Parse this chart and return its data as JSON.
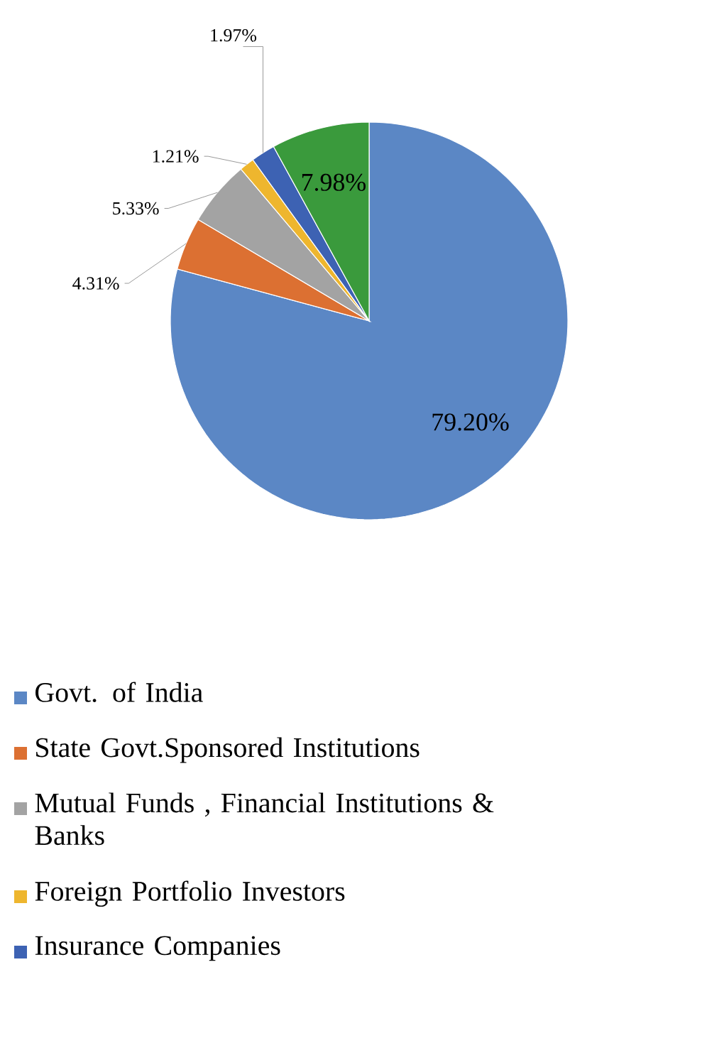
{
  "chart_data": {
    "type": "pie",
    "categories": [
      "Govt. of India",
      "State Govt.Sponsored Institutions",
      "Mutual Funds , Financial Institutions & Banks",
      "Foreign  Portfolio Investors",
      "Insurance Companies",
      null
    ],
    "values": [
      79.2,
      4.31,
      5.33,
      1.21,
      1.97,
      7.98
    ],
    "value_labels": [
      "79.20%",
      "4.31%",
      "5.33%",
      "1.21%",
      "1.97%",
      "7.98%"
    ],
    "colors": [
      "#5b87c5",
      "#dc7032",
      "#a3a3a3",
      "#eeb62e",
      "#3d62b3",
      "#3a9a3c"
    ],
    "legend": "bottom"
  }
}
